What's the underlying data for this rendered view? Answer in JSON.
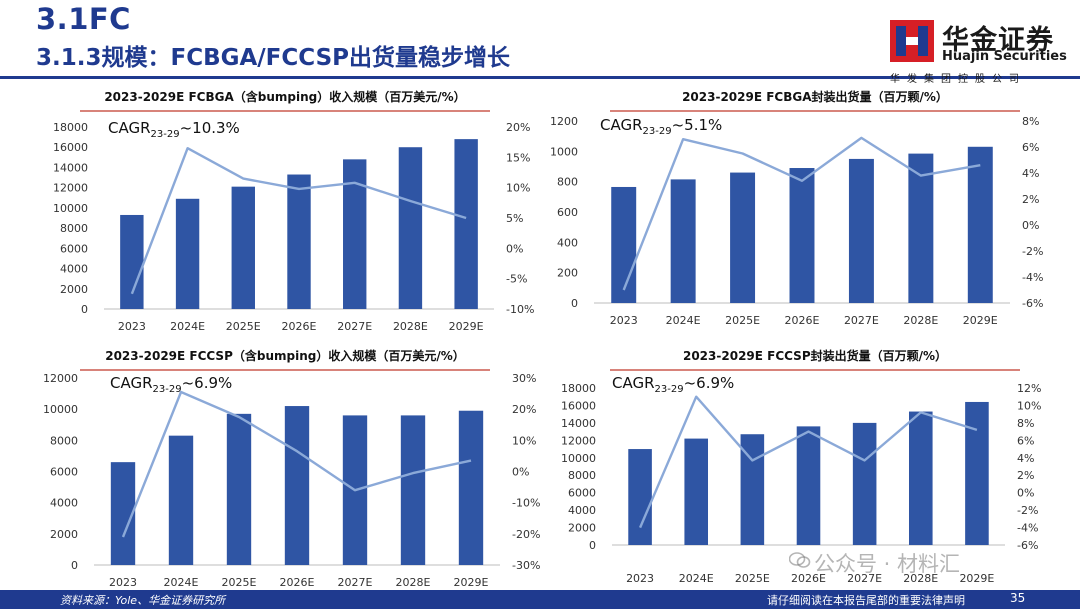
{
  "header": {
    "section": "3.1FC",
    "subtitle": "3.1.3规模：FCBGA/FCCSP出货量稳步增长"
  },
  "logo": {
    "cn": "华金证券",
    "en": "Huajin Securities",
    "sub": "华发集团控股公司"
  },
  "colors": {
    "bar": "#2f55a4",
    "line": "#8ba9d8",
    "brand": "#1f3a8f"
  },
  "chart_data": [
    {
      "type": "bar+line",
      "title": "2023-2029E FCBGA（含bumping）收入规模（百万美元/%）",
      "annotation": {
        "base": "CAGR",
        "sub": "23-29",
        "rest": "~10.3%"
      },
      "categories": [
        "2023",
        "2024E",
        "2025E",
        "2026E",
        "2027E",
        "2028E",
        "2029E"
      ],
      "bars": [
        9300,
        10900,
        12100,
        13300,
        14800,
        16000,
        16800
      ],
      "line": [
        -7.5,
        16.5,
        11.5,
        9.8,
        10.8,
        7.8,
        5.0
      ],
      "ylim_left": [
        0,
        18000
      ],
      "ylim_right": [
        -10,
        20
      ],
      "left_ticks": [
        "0",
        "2000",
        "4000",
        "6000",
        "8000",
        "10000",
        "12000",
        "14000",
        "16000",
        "18000"
      ],
      "right_ticks": [
        "-10%",
        "-5%",
        "0%",
        "5%",
        "10%",
        "15%",
        "20%"
      ]
    },
    {
      "type": "bar+line",
      "title": "2023-2029E FCBGA封装出货量（百万颗/%）",
      "annotation": {
        "base": "CAGR",
        "sub": "23-29",
        "rest": "~5.1%"
      },
      "categories": [
        "2023",
        "2024E",
        "2025E",
        "2026E",
        "2027E",
        "2028E",
        "2029E"
      ],
      "bars": [
        765,
        815,
        860,
        890,
        950,
        985,
        1030
      ],
      "line": [
        -5.0,
        6.6,
        5.5,
        3.4,
        6.7,
        3.8,
        4.6
      ],
      "ylim_left": [
        0,
        1200
      ],
      "ylim_right": [
        -6,
        8
      ],
      "left_ticks": [
        "0",
        "200",
        "400",
        "600",
        "800",
        "1000",
        "1200"
      ],
      "right_ticks": [
        "-6%",
        "-4%",
        "-2%",
        "0%",
        "2%",
        "4%",
        "6%",
        "8%"
      ]
    },
    {
      "type": "bar+line",
      "title": "2023-2029E FCCSP（含bumping）收入规模（百万美元/%）",
      "annotation": {
        "base": "CAGR",
        "sub": "23-29",
        "rest": "~6.9%"
      },
      "categories": [
        "2023",
        "2024E",
        "2025E",
        "2026E",
        "2027E",
        "2028E",
        "2029E"
      ],
      "bars": [
        6600,
        8300,
        9700,
        10200,
        9600,
        9600,
        9900
      ],
      "line": [
        -21,
        25.5,
        17.5,
        6.5,
        -6,
        -0.5,
        3.5
      ],
      "ylim_left": [
        0,
        12000
      ],
      "ylim_right": [
        -30,
        30
      ],
      "left_ticks": [
        "0",
        "2000",
        "4000",
        "6000",
        "8000",
        "10000",
        "12000"
      ],
      "right_ticks": [
        "-30%",
        "-20%",
        "-10%",
        "0%",
        "10%",
        "20%",
        "30%"
      ]
    },
    {
      "type": "bar+line",
      "title": "2023-2029E FCCSP封装出货量（百万颗/%）",
      "annotation": {
        "base": "CAGR",
        "sub": "23-29",
        "rest": "~6.9%"
      },
      "categories": [
        "2023",
        "2024E",
        "2025E",
        "2026E",
        "2027E",
        "2028E",
        "2029E"
      ],
      "bars": [
        11000,
        12200,
        12700,
        13600,
        14000,
        15300,
        16400
      ],
      "line": [
        -4,
        11,
        3.7,
        7,
        3.7,
        9.2,
        7.2
      ],
      "ylim_left": [
        0,
        18000
      ],
      "ylim_right": [
        -6,
        12
      ],
      "left_ticks": [
        "0",
        "2000",
        "4000",
        "6000",
        "8000",
        "10000",
        "12000",
        "14000",
        "16000",
        "18000"
      ],
      "right_ticks": [
        "-6%",
        "-4%",
        "-2%",
        "0%",
        "2%",
        "4%",
        "6%",
        "8%",
        "10%",
        "12%"
      ]
    }
  ],
  "footer": {
    "source": "资料来源：Yole、华金证券研究所",
    "disclaimer": "请仔细阅读在本报告尾部的重要法律声明",
    "page": "35"
  },
  "watermark": "公众号 · 材料汇"
}
